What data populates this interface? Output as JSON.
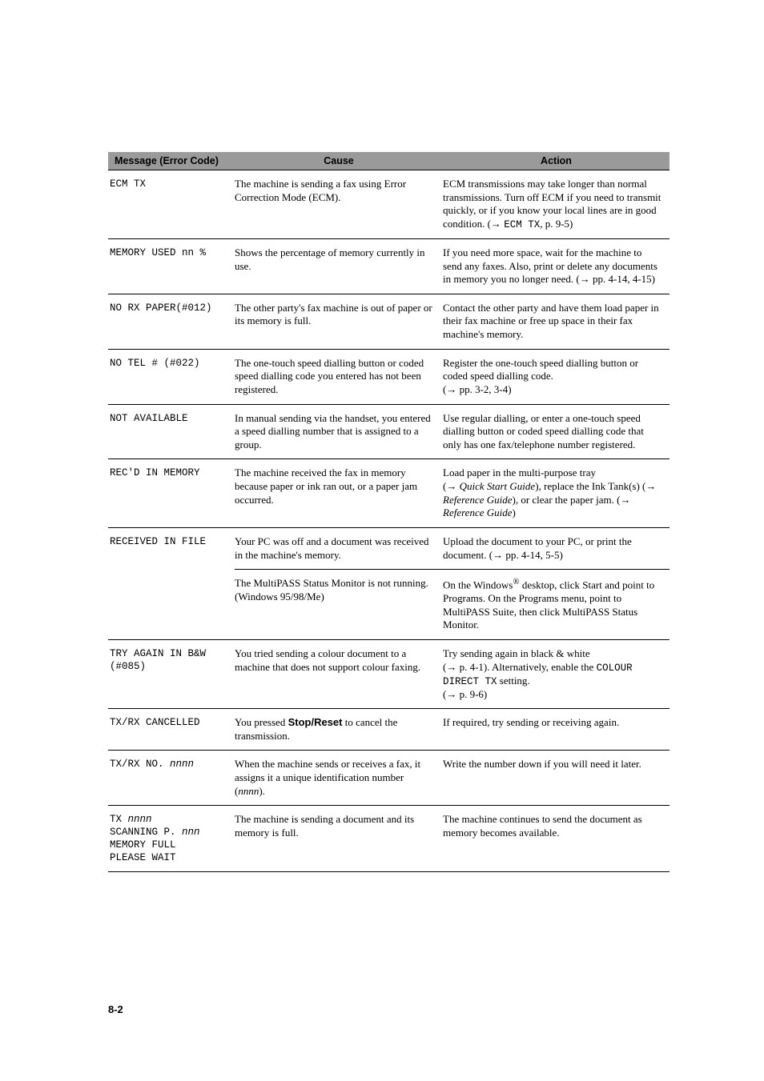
{
  "header": {
    "col1": "Message (Error Code)",
    "col2": "Cause",
    "col3": "Action"
  },
  "rows": [
    {
      "msg": "ECM TX",
      "cause": "The machine is sending a fax using Error Correction Mode (ECM).",
      "action_html": "ECM transmissions may take longer than normal transmissions. Turn off ECM if you need to transmit quickly, or if you know your local lines are in good condition. (→ <span class='mono'>ECM TX</span>, p. 9-5)"
    },
    {
      "msg": "MEMORY USED nn %",
      "cause": "Shows the percentage of memory currently in use.",
      "action_html": "If you need more space, wait for the machine to send any faxes. Also, print or delete any documents in memory you no longer need. (→ pp. 4-14, 4-15)"
    },
    {
      "msg": "NO RX PAPER(#012)",
      "cause": "The other party's fax machine is out of paper or its memory is full.",
      "action_html": "Contact the other party and have them load paper in their fax machine or free up space in their fax machine's memory."
    },
    {
      "msg": "NO TEL # (#022)",
      "cause": "The one-touch speed dialling button or coded speed dialling code you entered has not been registered.",
      "action_html": "Register the one-touch speed dialling button or coded speed dialling code.<br>(→ pp. 3-2, 3-4)"
    },
    {
      "msg": "NOT AVAILABLE",
      "cause": "In manual sending via the handset, you entered a speed dialling number that is assigned to a group.",
      "action_html": "Use regular dialling, or enter a one-touch speed dialling button or coded speed dialling code that only has one fax/telephone number registered."
    },
    {
      "msg": "REC'D IN MEMORY",
      "cause": "The machine received the fax in memory because paper or ink ran out, or a paper jam occurred.",
      "action_html": "Load paper in the multi-purpose tray<br>(→ <span class='ital'>Quick Start Guide</span>), replace the Ink Tank(s) (→ <span class='ital'>Reference Guide</span>), or clear the paper jam. (→ <span class='ital'>Reference Guide</span>)"
    },
    {
      "msg": "RECEIVED IN FILE",
      "cause": "Your PC was off and a document was received in the machine's memory.",
      "action_html": "Upload the document to your PC, or print the document. (→ pp. 4-14, 5-5)",
      "sub_cause": "The MultiPASS Status Monitor is not running. (Windows 95/98/Me)",
      "sub_action_html": "On the Windows<sup>®</sup> desktop, click Start and point to Programs. On the Programs menu, point to MultiPASS Suite, then click MultiPASS Status Monitor."
    },
    {
      "msg": "TRY AGAIN IN B&W\n(#085)",
      "cause": "You tried sending a colour document to a machine that does not support colour faxing.",
      "action_html": "Try sending again in black &amp; white<br>(→ p. 4-1). Alternatively, enable the <span class='mono'>COLOUR DIRECT TX</span> setting.<br>(→ p. 9-6)"
    },
    {
      "msg": "TX/RX CANCELLED",
      "cause_html": "You pressed <span class='bold-sans'>Stop/Reset</span> to cancel the transmission.",
      "action_html": "If required, try sending or receiving again."
    },
    {
      "msg_html": "TX/RX NO. <span class='ital'>nnnn</span>",
      "cause_html": "When the machine sends or receives a fax, it assigns it a unique identification number (<span class='ital'>nnnn</span>).",
      "action_html": "Write the number down if you will need it later."
    },
    {
      "msg_html": "TX <span class='ital'>nnnn</span>\nSCANNING P. <span class='ital'>nnn</span>\nMEMORY FULL\nPLEASE WAIT",
      "cause": "The machine is sending a document and its memory is full.",
      "action_html": "The machine continues to send the document as memory becomes available."
    }
  ],
  "page_number": "8-2"
}
